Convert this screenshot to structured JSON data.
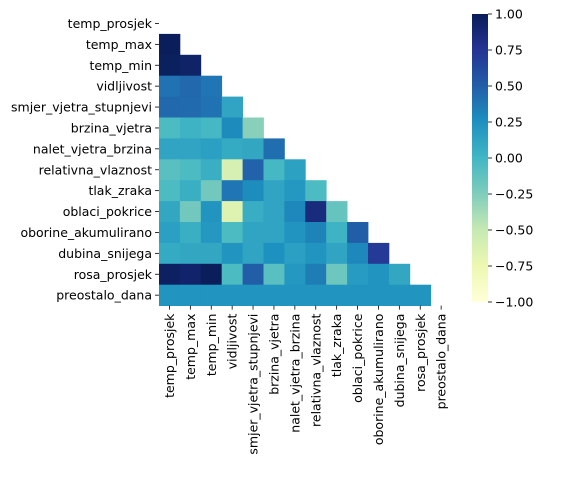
{
  "chart_data": {
    "type": "heatmap",
    "variables": [
      "temp_prosjek",
      "temp_max",
      "temp_min",
      "vidljivost",
      "smjer_vjetra_stupnjevi",
      "brzina_vjetra",
      "nalet_vjetra_brzina",
      "relativna_vlaznost",
      "tlak_zraka",
      "oblaci_pokrice",
      "oborine_akumulirano",
      "dubina_snijega",
      "rosa_prosjek",
      "preostalo_dana"
    ],
    "mask": "upper-triangle-and-diagonal",
    "colormap": "YlGnBu",
    "vmin": -1.0,
    "vmax": 1.0,
    "colorbar_ticks": [
      "1.00",
      "0.75",
      "0.50",
      "0.25",
      "0.00",
      "−0.25",
      "−0.50",
      "−0.75",
      "−1.00"
    ],
    "colorbar_tick_values": [
      1.0,
      0.75,
      0.5,
      0.25,
      0.0,
      -0.25,
      -0.5,
      -0.75,
      -1.0
    ],
    "lower_triangle_rows": [
      [],
      [
        0.99
      ],
      [
        0.97,
        0.94
      ],
      [
        0.4,
        0.45,
        0.38
      ],
      [
        0.45,
        0.44,
        0.4,
        0.12
      ],
      [
        -0.05,
        0.02,
        -0.02,
        0.28,
        -0.28
      ],
      [
        0.12,
        0.12,
        0.15,
        0.08,
        0.1,
        0.42
      ],
      [
        -0.1,
        -0.05,
        0.05,
        -0.6,
        0.48,
        -0.02,
        0.14
      ],
      [
        -0.05,
        0.05,
        -0.2,
        0.38,
        0.27,
        0.12,
        0.2,
        -0.05
      ],
      [
        0.1,
        -0.2,
        0.22,
        -0.65,
        0.06,
        0.12,
        0.3,
        0.85,
        -0.15
      ],
      [
        0.15,
        0.05,
        0.2,
        -0.05,
        0.12,
        0.12,
        0.22,
        0.32,
        0.02,
        0.5
      ],
      [
        0.08,
        0.1,
        0.1,
        0.22,
        0.12,
        0.25,
        0.15,
        0.22,
        0.12,
        0.3,
        0.72
      ],
      [
        0.96,
        0.92,
        0.99,
        -0.05,
        0.5,
        -0.1,
        0.2,
        0.35,
        -0.18,
        0.18,
        0.22,
        0.1
      ],
      [
        0.22,
        0.22,
        0.22,
        0.22,
        0.22,
        0.22,
        0.22,
        0.22,
        0.22,
        0.22,
        0.22,
        0.22,
        0.22
      ]
    ]
  }
}
